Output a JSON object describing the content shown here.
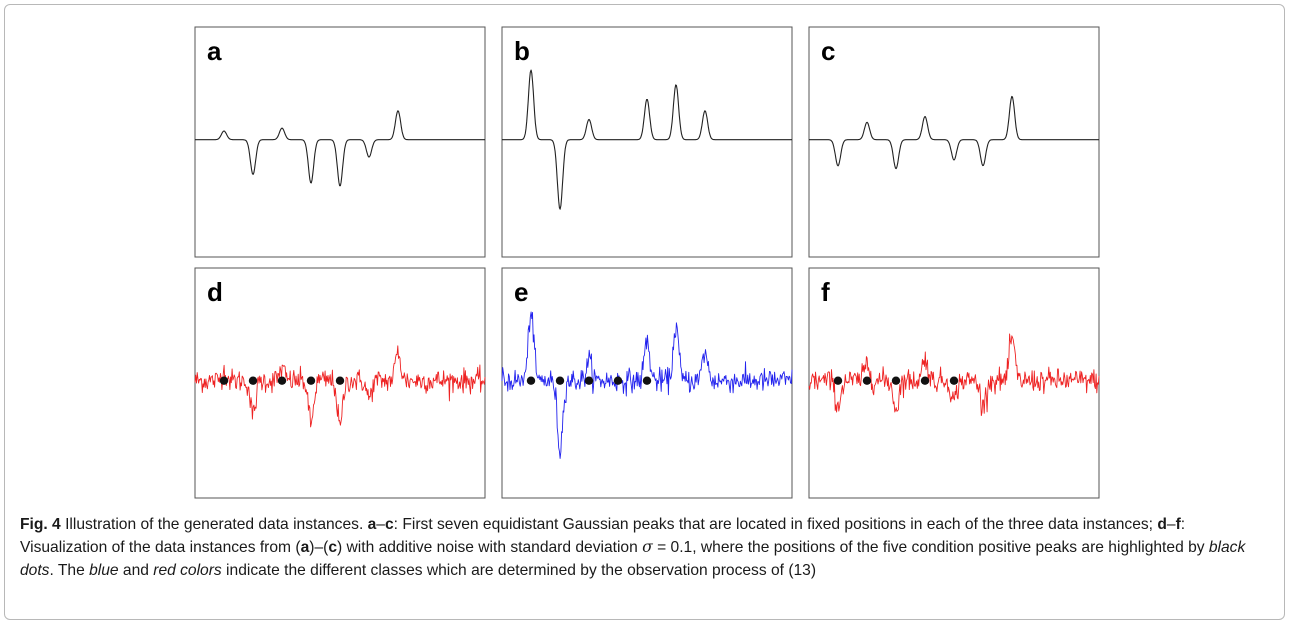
{
  "chart_data": {
    "type": "line",
    "x_points": 400,
    "peak_positions": [
      0.1,
      0.2,
      0.3,
      0.4,
      0.5,
      0.6,
      0.7
    ],
    "peak_width": 0.009,
    "noise_sigma": 0.1,
    "ylim": [
      -1.15,
      1.15
    ],
    "panels": [
      {
        "label": "a",
        "noisy": false,
        "color": "#222222",
        "amplitudes": [
          0.15,
          -0.6,
          0.2,
          -0.75,
          -0.8,
          -0.3,
          0.5
        ],
        "dots": []
      },
      {
        "label": "b",
        "noisy": false,
        "color": "#222222",
        "amplitudes": [
          1.2,
          -1.2,
          0.35,
          0.0,
          0.7,
          0.95,
          0.5
        ],
        "dots": []
      },
      {
        "label": "c",
        "noisy": false,
        "color": "#222222",
        "amplitudes": [
          -0.45,
          0.3,
          -0.5,
          0.4,
          -0.35,
          -0.45,
          0.75
        ],
        "dots": []
      },
      {
        "label": "d",
        "noisy": true,
        "color": "#ee2222",
        "amplitudes": [
          0.15,
          -0.6,
          0.2,
          -0.75,
          -0.8,
          -0.3,
          0.5
        ],
        "dots": [
          0.1,
          0.2,
          0.3,
          0.4,
          0.5
        ]
      },
      {
        "label": "e",
        "noisy": true,
        "color": "#2222ee",
        "amplitudes": [
          1.2,
          -1.2,
          0.35,
          0.0,
          0.7,
          0.95,
          0.5
        ],
        "dots": [
          0.1,
          0.2,
          0.3,
          0.4,
          0.5
        ]
      },
      {
        "label": "f",
        "noisy": true,
        "color": "#ee2222",
        "amplitudes": [
          -0.45,
          0.3,
          -0.5,
          0.4,
          -0.35,
          -0.45,
          0.75
        ],
        "dots": [
          0.1,
          0.2,
          0.3,
          0.4,
          0.5
        ]
      }
    ]
  },
  "caption": {
    "fig_label": "Fig. 4",
    "t1": " Illustration of the generated data instances. ",
    "b1": "a",
    "t2": "–",
    "b2": "c",
    "t3": ": First seven equidistant Gaussian peaks that are located in fixed positions in each of the three data instances; ",
    "b3": "d",
    "t4": "–",
    "b4": "f",
    "t5": ": Visualization of the data instances from (",
    "b5": "a",
    "t6": ")–(",
    "b6": "c",
    "t7": ") with additive noise with standard deviation ",
    "sigma_sym": "σ",
    "t8": " = 0.1, where the positions of the five condition positive peaks are highlighted by ",
    "i1": "black dots",
    "t9": ". The ",
    "i2": "blue",
    "t10": " and ",
    "i3": "red colors",
    "t11": " indicate the different classes which are determined by the observation process of (13)"
  }
}
